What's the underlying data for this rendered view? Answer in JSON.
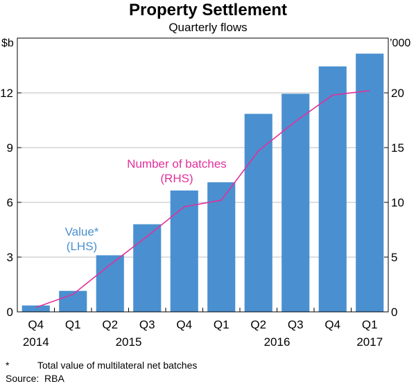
{
  "chart_data": {
    "type": "bar+line",
    "title": "Property Settlement",
    "subtitle": "Quarterly flows",
    "left_unit": "$b",
    "right_unit": "’000",
    "quarters": [
      "Q4",
      "Q1",
      "Q2",
      "Q3",
      "Q4",
      "Q1",
      "Q2",
      "Q3",
      "Q4",
      "Q1"
    ],
    "years": [
      {
        "label": "2014",
        "at_index": 0
      },
      {
        "label": "2015",
        "at_index": 2.5
      },
      {
        "label": "2016",
        "at_index": 6.5
      },
      {
        "label": "2017",
        "at_index": 9
      }
    ],
    "series": [
      {
        "name": "Value",
        "axis": "left",
        "type": "bar",
        "color": "#4a90d0",
        "label": "Value*",
        "label2": "(LHS)",
        "values": [
          0.35,
          1.15,
          3.1,
          4.8,
          6.65,
          7.1,
          10.85,
          11.95,
          13.45,
          14.15
        ]
      },
      {
        "name": "Number of batches",
        "axis": "right",
        "type": "line",
        "color": "#e0309a",
        "label": "Number of batches",
        "label2": "(RHS)",
        "values": [
          0.4,
          1.6,
          4.3,
          6.9,
          9.6,
          10.2,
          14.7,
          17.4,
          19.8,
          20.2
        ]
      }
    ],
    "y_left": {
      "min": 0,
      "max": 15,
      "ticks": [
        0,
        3,
        6,
        9,
        12
      ]
    },
    "y_right": {
      "min": 0,
      "max": 25,
      "ticks": [
        0,
        5,
        10,
        15,
        20
      ]
    }
  },
  "footnote": {
    "mark": "*",
    "text": "Total value of multilateral net batches"
  },
  "source": {
    "label": "Source:",
    "text": "RBA"
  }
}
